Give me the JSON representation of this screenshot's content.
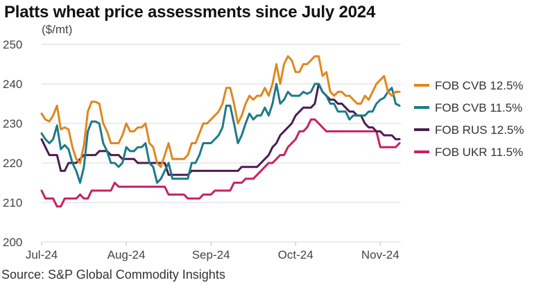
{
  "title": "Platts wheat price assessments since July 2024",
  "source": "Source: S&P Global Commodity Insights",
  "chart_data": {
    "type": "line",
    "title": "Platts wheat price assessments since July 2024",
    "ylabel": "($/mt)",
    "ylim": [
      200,
      250
    ],
    "yticks": [
      200,
      210,
      220,
      230,
      240,
      250
    ],
    "xticks": [
      "Jul-24",
      "Aug-24",
      "Sep-24",
      "Oct-24",
      "Nov-24"
    ],
    "xtick_index": [
      0,
      22,
      44,
      66,
      88
    ],
    "grid": "horizontal",
    "legend": "right",
    "series": [
      {
        "name": "FOB CVB 12.5%",
        "color": "#E0871E",
        "values": [
          232.5,
          231,
          230.5,
          232,
          234.5,
          228.5,
          229,
          228.5,
          224,
          221,
          220,
          224.5,
          233,
          235.5,
          235.5,
          235,
          230,
          228,
          225,
          225,
          225,
          227,
          230,
          228,
          228,
          229,
          229,
          230,
          225,
          224,
          220,
          219,
          222,
          225,
          221,
          221,
          221,
          221,
          222,
          225,
          225,
          227.5,
          230,
          230,
          231,
          232,
          233,
          235,
          239,
          239,
          235,
          230,
          232,
          235,
          237,
          236,
          237,
          237,
          239,
          237,
          240,
          245,
          240,
          245,
          247,
          246,
          243,
          243,
          245,
          245,
          246,
          247,
          247,
          242,
          243,
          238,
          237,
          238,
          238,
          237,
          237,
          236,
          235,
          235,
          237,
          236,
          238,
          240,
          241,
          242,
          238,
          237,
          238,
          238
        ]
      },
      {
        "name": "FOB CVB 11.5%",
        "color": "#1C7A88",
        "values": [
          227.5,
          226,
          225,
          226,
          229.5,
          223.5,
          224.5,
          223.5,
          220,
          218,
          215,
          219,
          228,
          230.5,
          230.5,
          230,
          225,
          223,
          220,
          220,
          219,
          220,
          224,
          223,
          223,
          224,
          224,
          225,
          220,
          219,
          215,
          216,
          218,
          220,
          216,
          216,
          216,
          216,
          216,
          220,
          220,
          222,
          225,
          225,
          225,
          226,
          227,
          229,
          234.5,
          234.5,
          230,
          225,
          227,
          230,
          232.5,
          231,
          232,
          232,
          234,
          232,
          235,
          240,
          235,
          236,
          238,
          237,
          237,
          237,
          238,
          237.5,
          238,
          240,
          240,
          238,
          237,
          235,
          235,
          233,
          233,
          233,
          231,
          232,
          232,
          232,
          232,
          233,
          233,
          235,
          236,
          236.5,
          238,
          239,
          235,
          234.5
        ]
      },
      {
        "name": "FOB RUS 12.5%",
        "color": "#4B1C52",
        "values": [
          226,
          224,
          222,
          222,
          222,
          218,
          218,
          220,
          220,
          220,
          221,
          222,
          222,
          222,
          222,
          223,
          223,
          223,
          222,
          222,
          222,
          221,
          221,
          221,
          221,
          220,
          220,
          220,
          220,
          220,
          220,
          220,
          220,
          217,
          217,
          217,
          217,
          217,
          217,
          218,
          218,
          218,
          218,
          218,
          218,
          218,
          218,
          218,
          218,
          218,
          218,
          218,
          219,
          219,
          219,
          219,
          219,
          220,
          221,
          222,
          224,
          225,
          227,
          228,
          229,
          230,
          232,
          233,
          234,
          234,
          234,
          235,
          240,
          238,
          237,
          236,
          236,
          235,
          235,
          234,
          233,
          233,
          232,
          232,
          230,
          229,
          229,
          228,
          228,
          227,
          227,
          227,
          226,
          226
        ]
      },
      {
        "name": "FOB UKR 11.5%",
        "color": "#C8225E",
        "values": [
          213,
          211,
          211,
          211,
          209,
          209,
          211,
          211,
          211,
          211,
          212,
          211,
          211,
          213,
          213,
          213,
          213,
          213,
          213,
          215,
          214,
          214,
          214,
          214,
          214,
          214,
          214,
          214,
          214,
          214,
          214,
          214,
          214,
          212,
          212,
          212,
          212,
          212,
          211,
          211,
          211,
          211,
          212,
          212,
          212,
          213,
          213,
          213,
          213,
          213,
          215,
          215,
          215,
          216,
          216,
          216,
          217,
          218,
          219,
          220,
          220,
          221,
          222,
          222,
          224,
          225,
          226,
          228,
          228,
          229,
          231,
          231,
          230,
          229,
          228,
          228,
          228,
          228,
          228,
          228,
          228,
          228,
          228,
          228,
          228,
          228,
          228,
          228,
          224,
          224,
          224,
          224,
          224,
          225
        ]
      }
    ]
  }
}
